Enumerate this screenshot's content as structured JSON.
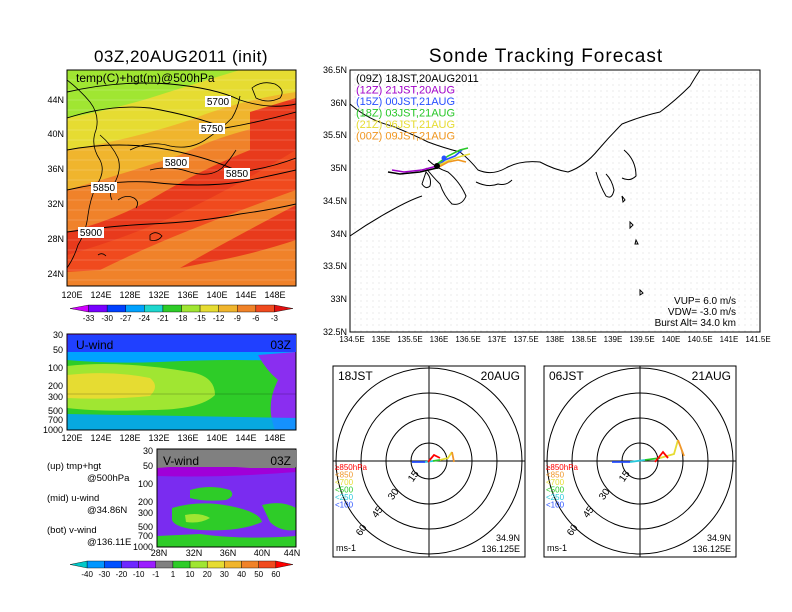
{
  "left_title": "03Z,20AUG2011 (init)",
  "right_title": "Sonde Tracking Forecast",
  "upper_map": {
    "label": "temp(C)+hgt(m)@500hPa",
    "lat_labels": [
      "44N",
      "40N",
      "36N",
      "32N",
      "28N",
      "24N"
    ],
    "lon_labels": [
      "120E",
      "124E",
      "128E",
      "132E",
      "136E",
      "140E",
      "144E",
      "148E"
    ],
    "contours": [
      "5700",
      "5750",
      "5800",
      "5850",
      "5850",
      "5900"
    ],
    "colorbar_labels": [
      "-33",
      "-30",
      "-27",
      "-24",
      "-21",
      "-18",
      "-15",
      "-12",
      "-9",
      "-6",
      "-3"
    ],
    "colorbar_colors": [
      "#d000ff",
      "#7700ff",
      "#0040ff",
      "#00a2ff",
      "#1ed7ce",
      "#2ecc28",
      "#a0e632",
      "#e6dc32",
      "#f0b52d",
      "#f08228",
      "#f04a1e",
      "#e01010"
    ]
  },
  "uwind": {
    "label": "U-wind",
    "time": "03Z",
    "p_labels": [
      "30",
      "50",
      "100",
      "200",
      "300",
      "500",
      "700",
      "1000"
    ],
    "lon_labels": [
      "120E",
      "124E",
      "128E",
      "132E",
      "136E",
      "140E",
      "144E",
      "148E"
    ]
  },
  "vwind": {
    "label": "V-wind",
    "time": "03Z",
    "p_labels": [
      "30",
      "50",
      "100",
      "200",
      "300",
      "500",
      "700",
      "1000"
    ],
    "lat_labels": [
      "28N",
      "32N",
      "36N",
      "40N",
      "44N"
    ]
  },
  "legend_notes": [
    "(up) tmp+hgt",
    "@500hPa",
    "(mid) u-wind",
    "@34.86N",
    "(bot) v-wind",
    "@136.11E"
  ],
  "wind_colorbar": {
    "labels": [
      "-40",
      "-30",
      "-20",
      "-10",
      "-1",
      "1",
      "10",
      "20",
      "30",
      "40",
      "50",
      "60"
    ],
    "colors": [
      "#00c8c8",
      "#0096ff",
      "#0050ff",
      "#6e28ff",
      "#9b1eff",
      "#808080",
      "#2ecc28",
      "#a0e632",
      "#e6dc32",
      "#f0b52d",
      "#f08228",
      "#f04a1e",
      "#ff0000"
    ]
  },
  "track": {
    "lat_labels": [
      "36.5N",
      "36N",
      "35.5N",
      "35N",
      "34.5N",
      "34N",
      "33.5N",
      "33N",
      "32.5N"
    ],
    "lon_labels": [
      "134.5E",
      "135E",
      "135.5E",
      "136E",
      "136.5E",
      "137E",
      "137.5E",
      "138E",
      "138.5E",
      "139E",
      "139.5E",
      "140E",
      "140.5E",
      "141E",
      "141.5E"
    ],
    "runs": [
      {
        "label": "(09Z)  18JST,20AUG2011",
        "color": "#000000"
      },
      {
        "label": "(12Z)  21JST,20AUG",
        "color": "#a000c8"
      },
      {
        "label": "(15Z)  00JST,21AUG",
        "color": "#2850ff"
      },
      {
        "label": "(18Z)  03JST,21AUG",
        "color": "#28c828"
      },
      {
        "label": "(21Z)  06JST,21AUG",
        "color": "#e6dc32"
      },
      {
        "label": "(00Z)  09JST,21AUG",
        "color": "#f0961e"
      }
    ],
    "params": [
      "VUP=  6.0  m/s",
      "VDW= -3.0  m/s",
      "Burst Alt=  34.0  km"
    ]
  },
  "hodo_left": {
    "time": "18JST",
    "date": "20AUG",
    "rings": [
      "15",
      "30",
      "45",
      "60"
    ],
    "legend": [
      "≥850hPa",
      "<850",
      "<700",
      "<500",
      "<250",
      "<100"
    ],
    "unit": "ms-1",
    "lat": "34.9N",
    "lon": "136.125E"
  },
  "hodo_right": {
    "time": "06JST",
    "date": "21AUG",
    "rings": [
      "15",
      "30",
      "45",
      "60"
    ],
    "legend": [
      "≥850hPa",
      "<850",
      "<700",
      "<500",
      "<250",
      "<100"
    ],
    "unit": "ms-1",
    "lat": "34.9N",
    "lon": "136.125E"
  },
  "hodo_legend_colors": [
    "#ff0000",
    "#f09628",
    "#e6dc32",
    "#28c828",
    "#28c8dc",
    "#2850ff"
  ]
}
